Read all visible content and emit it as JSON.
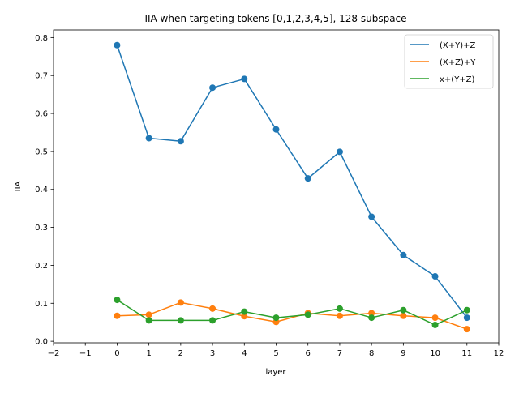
{
  "chart_data": {
    "type": "line",
    "title": "IIA when targeting tokens [0,1,2,3,4,5], 128 subspace",
    "xlabel": "layer",
    "ylabel": "IIA",
    "xlim": [
      -2,
      12
    ],
    "ylim": [
      -0.004,
      0.82
    ],
    "xticks": [
      "−2",
      "−1",
      "0",
      "1",
      "2",
      "3",
      "4",
      "5",
      "6",
      "7",
      "8",
      "9",
      "10",
      "11",
      "12"
    ],
    "xtick_values": [
      -2,
      -1,
      0,
      1,
      2,
      3,
      4,
      5,
      6,
      7,
      8,
      9,
      10,
      11,
      12
    ],
    "yticks": [
      "0.0",
      "0.1",
      "0.2",
      "0.3",
      "0.4",
      "0.5",
      "0.6",
      "0.7",
      "0.8"
    ],
    "ytick_values": [
      0.0,
      0.1,
      0.2,
      0.3,
      0.4,
      0.5,
      0.6,
      0.7,
      0.8
    ],
    "grid": false,
    "legend_position": "top-right",
    "x": [
      0,
      1,
      2,
      3,
      4,
      5,
      6,
      7,
      8,
      9,
      10,
      11
    ],
    "series": [
      {
        "name": "(X+Y)+Z",
        "color": "#1f77b4",
        "values": [
          0.78,
          0.535,
          0.527,
          0.668,
          0.691,
          0.558,
          0.429,
          0.499,
          0.328,
          0.227,
          0.171,
          0.062
        ]
      },
      {
        "name": "(X+Z)+Y",
        "color": "#ff7f0e",
        "values": [
          0.067,
          0.07,
          0.102,
          0.086,
          0.066,
          0.051,
          0.074,
          0.067,
          0.074,
          0.067,
          0.062,
          0.032
        ]
      },
      {
        "name": "x+(Y+Z)",
        "color": "#2ca02c",
        "values": [
          0.109,
          0.055,
          0.055,
          0.055,
          0.078,
          0.062,
          0.07,
          0.086,
          0.062,
          0.082,
          0.043,
          0.082
        ]
      }
    ]
  }
}
